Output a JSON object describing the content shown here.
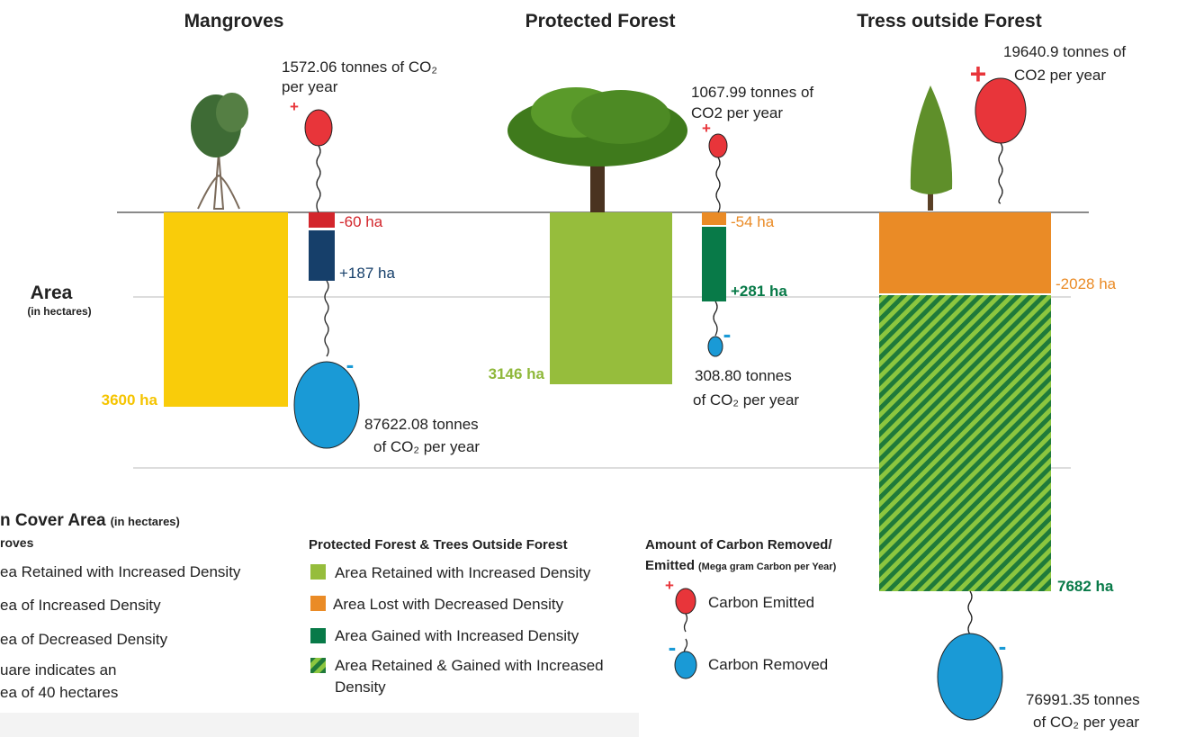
{
  "columns": [
    {
      "title": "Mangroves",
      "emission_label": [
        "1572.06 tonnes of CO₂",
        "per year"
      ],
      "removal_label": [
        "87622.08 tonnes",
        "of CO₂ per year"
      ],
      "area_labels": {
        "retained": "3600 ha",
        "lost": "-60 ha",
        "gained": "+187 ha"
      },
      "emitted_sign": "+",
      "removed_sign": "-"
    },
    {
      "title": "Protected Forest",
      "emission_label": [
        "1067.99 tonnes of",
        "CO2 per year"
      ],
      "removal_label": [
        "308.80 tonnes",
        "of CO₂ per year"
      ],
      "area_labels": {
        "retained": "3146 ha",
        "lost": "-54 ha",
        "gained": "+281 ha"
      },
      "emitted_sign": "+",
      "removed_sign": "-"
    },
    {
      "title": "Tress outside Forest",
      "emission_label": [
        "19640.9 tonnes of",
        "CO2 per year"
      ],
      "removal_label": [
        "76991.35 tonnes",
        "of CO₂ per year"
      ],
      "area_labels": {
        "lost": "-2028 ha",
        "retained_gained": "7682 ha"
      },
      "emitted_sign": "+",
      "removed_sign": "-"
    }
  ],
  "row_label": {
    "title": "Area",
    "unit": "(in hectares)"
  },
  "legend": {
    "title": "n Cover Area",
    "title_unit": "(in hectares)",
    "mangroves": {
      "title": "roves",
      "items": [
        "ea Retained with Increased Density",
        "ea of Increased Density",
        "ea of Decreased Density"
      ],
      "note": [
        "uare indicates an",
        "ea of 40 hectares"
      ]
    },
    "forest": {
      "title": "Protected Forest & Trees Outside Forest",
      "items": [
        "Area Retained with Increased Density",
        "Area Lost with Decreased Density",
        "Area Gained with Increased Density"
      ],
      "hatched_item": [
        "Area Retained & Gained with Increased",
        "Density"
      ]
    },
    "carbon": {
      "title": "Amount of Carbon Removed/",
      "subtitle": "Emitted",
      "subtitle_unit": "(Mega gram Carbon per Year)",
      "emitted": "Carbon Emitted",
      "removed": "Carbon Removed",
      "emitted_sign": "+",
      "removed_sign": "-"
    }
  }
}
